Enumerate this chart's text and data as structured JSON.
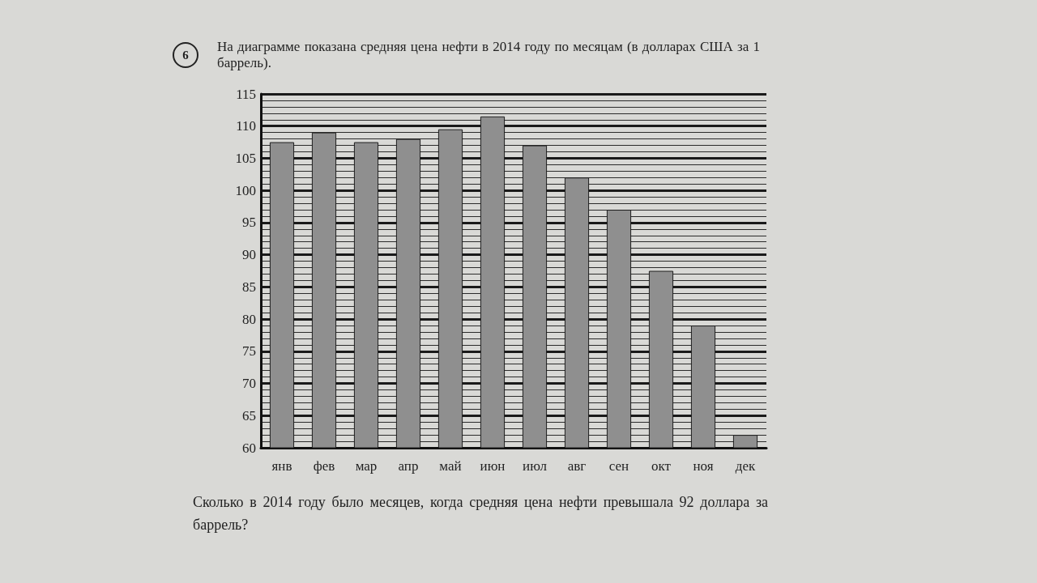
{
  "chart_data": {
    "type": "bar",
    "title": "На диаграмме показана средняя цена нефти в 2014 году по месяцам (в долларах США за 1 баррель).",
    "annotations": [
      "6",
      "Сколько в 2014 году было месяцев, когда средняя цена нефти превышала 92 доллара за баррель?"
    ],
    "categories": [
      "янв",
      "фев",
      "мар",
      "апр",
      "май",
      "июн",
      "июл",
      "авг",
      "сен",
      "окт",
      "ноя",
      "дек"
    ],
    "values": [
      107.5,
      109,
      107.5,
      108,
      109.5,
      111.5,
      107,
      102,
      97,
      87.5,
      79,
      62
    ],
    "color": "#8f8f8f",
    "ylim": [
      60,
      115
    ],
    "yticks": [
      60,
      {
        "value": 61,
        "label": null
      },
      {
        "value": 62,
        "label": null
      },
      {
        "value": 63,
        "label": null
      },
      {
        "value": 64,
        "label": null
      },
      65,
      {
        "value": 66,
        "label": null
      },
      {
        "value": 67,
        "label": null
      },
      {
        "value": 68,
        "label": null
      },
      {
        "value": 69,
        "label": null
      },
      70,
      {
        "value": 71,
        "label": null
      },
      {
        "value": 72,
        "label": null
      },
      {
        "value": 73,
        "label": null
      },
      {
        "value": 74,
        "label": null
      },
      75,
      {
        "value": 76,
        "label": null
      },
      {
        "value": 77,
        "label": null
      },
      {
        "value": 78,
        "label": null
      },
      {
        "value": 79,
        "label": null
      },
      80,
      {
        "value": 81,
        "label": null
      },
      {
        "value": 82,
        "label": null
      },
      {
        "value": 83,
        "label": null
      },
      {
        "value": 84,
        "label": null
      },
      85,
      {
        "value": 86,
        "label": null
      },
      {
        "value": 87,
        "label": null
      },
      {
        "value": 88,
        "label": null
      },
      {
        "value": 89,
        "label": null
      },
      90,
      {
        "value": 91,
        "label": null
      },
      {
        "value": 92,
        "label": null
      },
      {
        "value": 93,
        "label": null
      },
      {
        "value": 94,
        "label": null
      },
      95,
      {
        "value": 96,
        "label": null
      },
      {
        "value": 97,
        "label": null
      },
      {
        "value": 98,
        "label": null
      },
      {
        "value": 99,
        "label": null
      },
      100,
      {
        "value": 101,
        "label": null
      },
      {
        "value": 102,
        "label": null
      },
      {
        "value": 103,
        "label": null
      },
      {
        "value": 104,
        "label": null
      },
      105,
      {
        "value": 106,
        "label": null
      },
      {
        "value": 107,
        "label": null
      },
      {
        "value": 108,
        "label": null
      },
      {
        "value": 109,
        "label": null
      },
      110,
      {
        "value": 111,
        "label": null
      },
      {
        "value": 112,
        "label": null
      },
      {
        "value": 113,
        "label": null
      },
      {
        "value": 114,
        "label": null
      },
      115
    ],
    "grid": true
  }
}
